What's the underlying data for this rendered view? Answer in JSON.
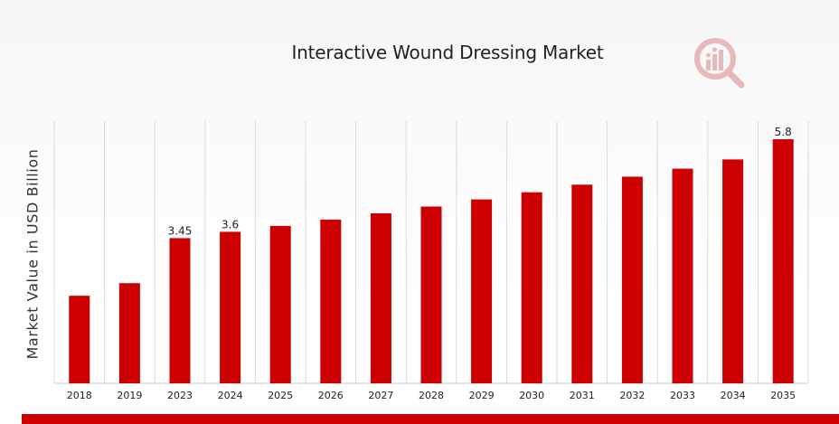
{
  "colors": {
    "bar": "#cc0000",
    "grid": "#d9d9d9",
    "accent_bar": "#cc0000",
    "logo": "#e9b9b9"
  },
  "icons": {
    "logo": "market-research-logo-icon"
  },
  "chart_data": {
    "type": "bar",
    "title": "Interactive Wound Dressing Market",
    "xlabel": "",
    "ylabel": "Market Value in USD Billion",
    "categories": [
      "2018",
      "2019",
      "2023",
      "2024",
      "2025",
      "2026",
      "2027",
      "2028",
      "2029",
      "2030",
      "2031",
      "2032",
      "2033",
      "2034",
      "2035"
    ],
    "values": [
      2.08,
      2.38,
      3.45,
      3.6,
      3.74,
      3.89,
      4.04,
      4.2,
      4.37,
      4.54,
      4.72,
      4.91,
      5.1,
      5.32,
      5.8
    ],
    "data_labels": {
      "2023": "3.45",
      "2024": "3.6",
      "2035": "5.8"
    },
    "ylim": [
      0,
      6.23
    ],
    "grid": true,
    "grid_axis": "x",
    "legend": "none"
  }
}
